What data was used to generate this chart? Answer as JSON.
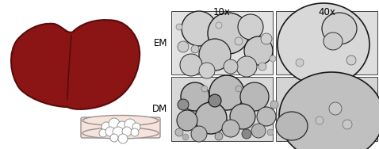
{
  "fig_width": 4.78,
  "fig_height": 1.88,
  "dpi": 100,
  "bg_color": "#ffffff",
  "liver_color": "#8B1515",
  "liver_edge_color": "#5a0a0a",
  "dish_body_color": "#f5e4dc",
  "dish_rim_color": "#e8d0c8",
  "dish_edge_color": "#999090",
  "label_10x": "10x",
  "label_40x": "40x",
  "label_em": "EM",
  "label_dm": "DM",
  "label_fontsize": 8.5,
  "em10_bg": "#e8e8e8",
  "em40_bg": "#e0e0e0",
  "dm10_bg": "#dcdcdc",
  "dm40_bg": "#d8d8d8"
}
